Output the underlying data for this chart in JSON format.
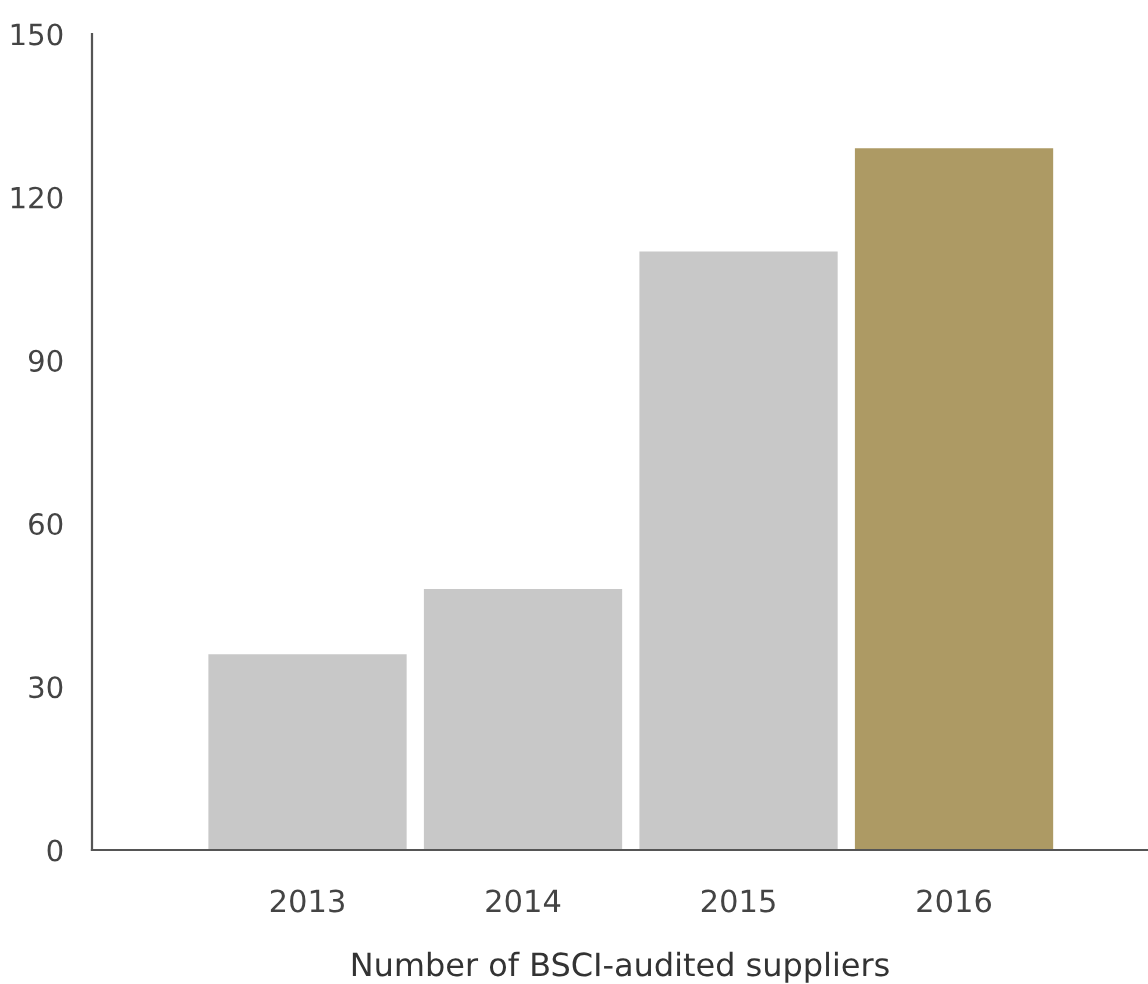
{
  "chart_data": {
    "type": "bar",
    "xlabel": "Number of BSCI-audited suppliers",
    "categories": [
      "2013",
      "2014",
      "2015",
      "2016"
    ],
    "values": [
      36,
      48,
      110,
      129
    ],
    "colors": [
      "#c8c8c8",
      "#c8c8c8",
      "#c8c8c8",
      "#ad9a64"
    ],
    "ylim": [
      0,
      150
    ],
    "yticks": [
      0,
      30,
      60,
      90,
      120,
      150
    ],
    "grid": false
  }
}
